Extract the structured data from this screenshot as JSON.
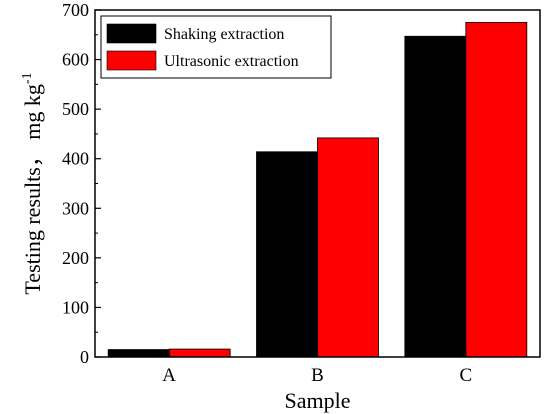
{
  "chart_data": {
    "type": "bar",
    "categories": [
      "A",
      "B",
      "C"
    ],
    "series": [
      {
        "name": "Shaking extraction",
        "color": "#000000",
        "values": [
          15,
          414,
          647
        ]
      },
      {
        "name": "Ultrasonic extraction",
        "color": "#ff0000",
        "values": [
          16,
          442,
          675
        ]
      }
    ],
    "xlabel": "Sample",
    "ylabel_main": "Testing results，  mg kg",
    "ylabel_sup": "-1",
    "ylim": [
      0,
      700
    ],
    "yticks": [
      "0",
      "100",
      "200",
      "300",
      "400",
      "500",
      "600",
      "700"
    ],
    "grid": false,
    "legend_position": "top-left"
  }
}
